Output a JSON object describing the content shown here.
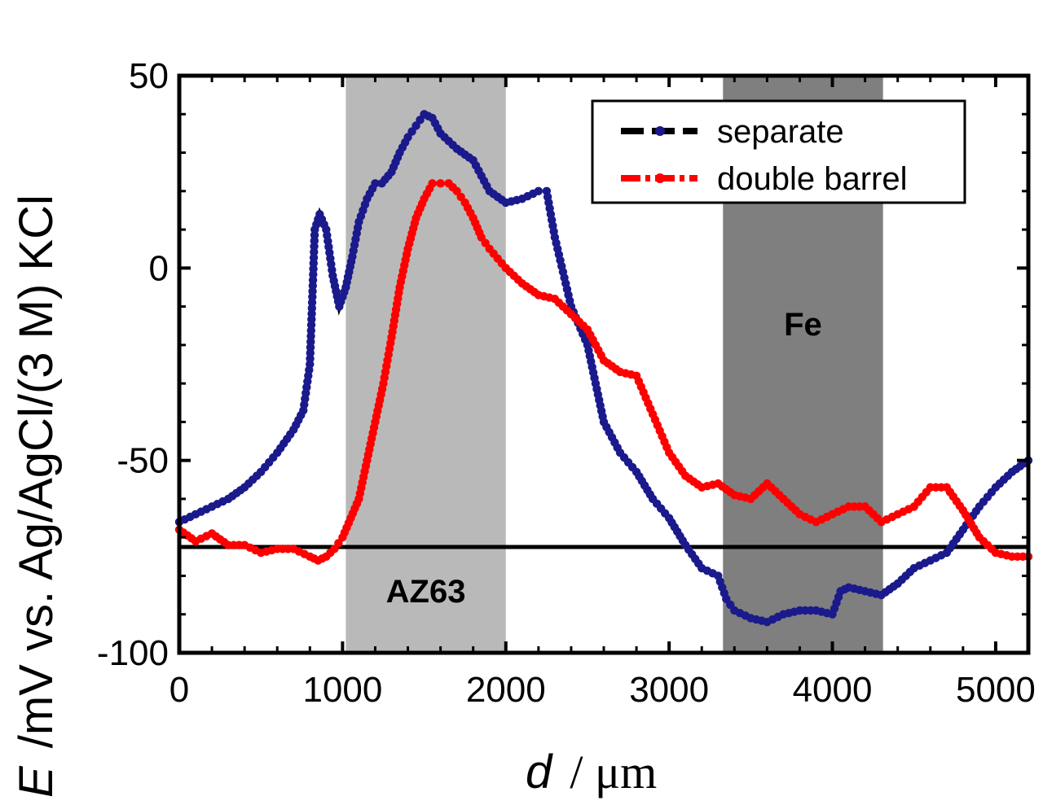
{
  "chart_data": {
    "type": "line",
    "xlabel_var": "d",
    "xlabel_unit": "/ μm",
    "ylabel_var": "E",
    "ylabel_unit": "/mV vs. Ag/AgCl/(3 M) KCl",
    "xlim": [
      0,
      5200
    ],
    "ylim": [
      -100,
      50
    ],
    "xticks": [
      0,
      1000,
      2000,
      3000,
      4000,
      5000
    ],
    "yticks": [
      50,
      0,
      -50,
      -100
    ],
    "grid": false,
    "legend_position": "top-right",
    "reference_line_y": -72.5,
    "regions": [
      {
        "label": "AZ63",
        "x0": 1020,
        "x1": 2000,
        "color": "#b9b9b9"
      },
      {
        "label": "Fe",
        "x0": 3330,
        "x1": 4310,
        "color": "#7f7f7f"
      }
    ],
    "series": [
      {
        "name": "separate",
        "marker_color": "#1a1a8c",
        "line_color": "#000000",
        "x": [
          0,
          100,
          200,
          300,
          400,
          500,
          600,
          700,
          760,
          800,
          830,
          860,
          900,
          940,
          980,
          1020,
          1060,
          1100,
          1150,
          1200,
          1240,
          1300,
          1350,
          1400,
          1450,
          1500,
          1550,
          1600,
          1650,
          1700,
          1800,
          1900,
          2000,
          2100,
          2200,
          2250,
          2300,
          2400,
          2500,
          2600,
          2700,
          2800,
          2900,
          3000,
          3100,
          3200,
          3300,
          3350,
          3400,
          3500,
          3600,
          3700,
          3800,
          3900,
          4000,
          4050,
          4100,
          4200,
          4300,
          4400,
          4500,
          4600,
          4700,
          4800,
          4900,
          5000,
          5100,
          5200
        ],
        "y": [
          -66,
          -64,
          -62,
          -60,
          -57,
          -53,
          -48,
          -42,
          -37,
          -25,
          10,
          14,
          10,
          -2,
          -10,
          -5,
          3,
          12,
          18,
          22,
          22,
          25,
          30,
          34,
          37,
          40,
          39,
          35,
          33,
          31,
          28,
          20,
          17,
          18,
          20,
          20,
          8,
          -10,
          -20,
          -40,
          -48,
          -53,
          -60,
          -65,
          -72,
          -78,
          -80,
          -86,
          -89,
          -91,
          -92,
          -90,
          -89,
          -89,
          -90,
          -84,
          -83,
          -84,
          -85,
          -82,
          -78,
          -76,
          -74,
          -68,
          -62,
          -57,
          -53,
          -50
        ]
      },
      {
        "name": "double barrel",
        "marker_color": "#ff0000",
        "line_color": "#ff0000",
        "x": [
          0,
          100,
          200,
          300,
          400,
          500,
          600,
          700,
          800,
          850,
          900,
          950,
          1000,
          1050,
          1100,
          1150,
          1200,
          1250,
          1300,
          1350,
          1400,
          1450,
          1500,
          1550,
          1600,
          1650,
          1700,
          1750,
          1800,
          1850,
          1900,
          2000,
          2100,
          2200,
          2300,
          2400,
          2500,
          2600,
          2700,
          2800,
          2900,
          3000,
          3100,
          3200,
          3300,
          3400,
          3500,
          3600,
          3700,
          3800,
          3900,
          4000,
          4100,
          4200,
          4300,
          4400,
          4500,
          4600,
          4700,
          4800,
          4900,
          5000,
          5100,
          5200
        ],
        "y": [
          -68,
          -71,
          -69,
          -72,
          -72,
          -74,
          -73,
          -73,
          -75,
          -76,
          -75,
          -73,
          -70,
          -65,
          -60,
          -50,
          -40,
          -30,
          -18,
          -5,
          5,
          13,
          18,
          22,
          22,
          22,
          20,
          17,
          13,
          8,
          5,
          0,
          -4,
          -7,
          -8,
          -12,
          -16,
          -24,
          -27,
          -28,
          -38,
          -48,
          -54,
          -57,
          -56,
          -59,
          -60,
          -56,
          -60,
          -64,
          -66,
          -64,
          -62,
          -62,
          -66,
          -64,
          -62,
          -57,
          -57,
          -63,
          -70,
          -74,
          -75,
          -75
        ]
      }
    ],
    "legend": [
      {
        "label": "separate"
      },
      {
        "label": "double barrel"
      }
    ]
  }
}
